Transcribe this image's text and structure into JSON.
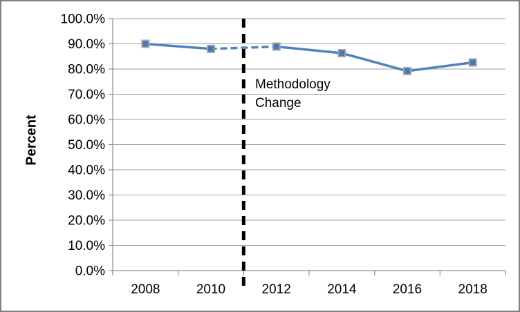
{
  "chart_data": {
    "type": "line",
    "title": "",
    "xlabel": "",
    "ylabel": "Percent",
    "categories": [
      "2008",
      "2010",
      "2012",
      "2014",
      "2016",
      "2018"
    ],
    "series": [
      {
        "name": "Percent",
        "values": [
          90.0,
          88.0,
          88.9,
          86.3,
          79.2,
          82.6
        ]
      }
    ],
    "ylim": [
      0,
      100
    ],
    "ytick_values": [
      0,
      10,
      20,
      30,
      40,
      50,
      60,
      70,
      80,
      90,
      100
    ],
    "ytick_labels": [
      "0.0%",
      "10.0%",
      "20.0%",
      "30.0%",
      "40.0%",
      "50.0%",
      "60.0%",
      "70.0%",
      "80.0%",
      "90.0%",
      "100.0%"
    ],
    "grid": true,
    "legend_position": "none",
    "dashed_segment": {
      "from_category": "2010",
      "to_category": "2012"
    },
    "annotation": {
      "text_lines": [
        "Methodology",
        "Change"
      ],
      "vline_year": 2011
    }
  },
  "colors": {
    "line": "#4F81BD",
    "marker_fill": "#4878B6",
    "marker_border": "#A6A6A6",
    "gridline": "#9C9C9C",
    "axis": "#8C8C8C",
    "vline": "#000000",
    "text": "#000000",
    "frame_border": "#7F7F7F",
    "background": "#FFFFFF"
  }
}
